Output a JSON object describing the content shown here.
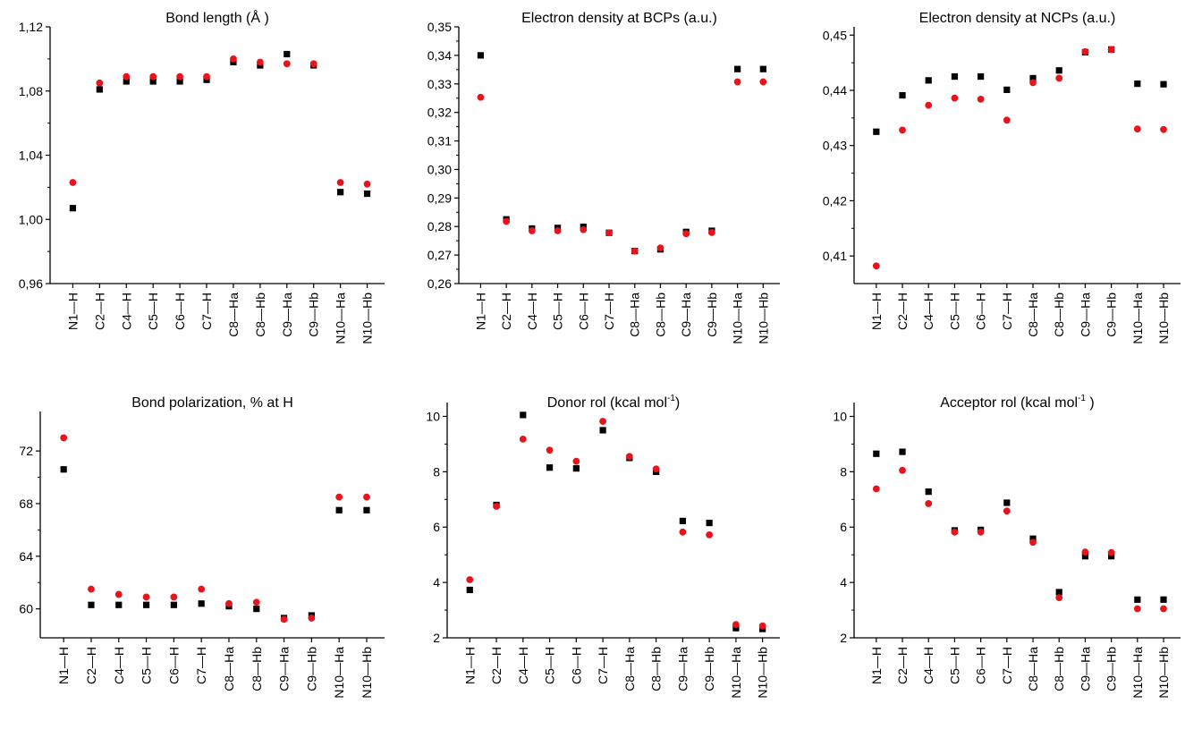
{
  "chart_data": [
    {
      "type": "scatter",
      "title": "Bond length (Å )",
      "categories": [
        "N1—H",
        "C2—H",
        "C4—H",
        "C5—H",
        "C6—H",
        "C7—H",
        "C8—Ha",
        "C8—Hb",
        "C9—Ha",
        "C9—Hb",
        "N10—Ha",
        "N10—Hb"
      ],
      "ylim": [
        0.96,
        1.12
      ],
      "yticks": [
        "0,96",
        "1,00",
        "1,04",
        "1,08",
        "1,12"
      ],
      "series": [
        {
          "marker": "square",
          "color": "#000000",
          "values": [
            1.007,
            1.081,
            1.086,
            1.086,
            1.086,
            1.087,
            1.098,
            1.096,
            1.103,
            1.096,
            1.017,
            1.016
          ]
        },
        {
          "marker": "circle",
          "color": "#e8141b",
          "values": [
            1.023,
            1.085,
            1.089,
            1.089,
            1.089,
            1.089,
            1.1,
            1.098,
            1.097,
            1.097,
            1.023,
            1.022
          ]
        }
      ]
    },
    {
      "type": "scatter",
      "title": "Electron density at BCPs (a.u.)",
      "categories": [
        "N1—H",
        "C2—H",
        "C4—H",
        "C5—H",
        "C6—H",
        "C7—H",
        "C8—Ha",
        "C8—Hb",
        "C9—Ha",
        "C9—Hb",
        "N10—Ha",
        "N10—Hb"
      ],
      "ylim": [
        0.26,
        0.35
      ],
      "yticks": [
        "0,26",
        "0,27",
        "0,28",
        "0,29",
        "0,30",
        "0,31",
        "0,32",
        "0,33",
        "0,34",
        "0,35"
      ],
      "series": [
        {
          "marker": "square",
          "color": "#000000",
          "values": [
            0.34,
            0.2825,
            0.2793,
            0.2795,
            0.2799,
            0.2778,
            0.2714,
            0.272,
            0.2781,
            0.2785,
            0.3352,
            0.3352
          ]
        },
        {
          "marker": "circle",
          "color": "#e8141b",
          "values": [
            0.3253,
            0.2818,
            0.2785,
            0.2785,
            0.2789,
            0.2778,
            0.2714,
            0.2725,
            0.2775,
            0.2779,
            0.3307,
            0.3307
          ]
        }
      ]
    },
    {
      "type": "scatter",
      "title": "Electron density at NCPs (a.u.)",
      "categories": [
        "N1—H",
        "C2—H",
        "C4—H",
        "C5—H",
        "C6—H",
        "C7—H",
        "C8—Ha",
        "C8—Hb",
        "C9—Ha",
        "C9—Hb",
        "N10—Ha",
        "N10—Hb"
      ],
      "ylim": [
        0.405,
        0.4515
      ],
      "yticks": [
        "0,41",
        "0,42",
        "0,43",
        "0,44",
        "0,45"
      ],
      "series": [
        {
          "marker": "square",
          "color": "#000000",
          "values": [
            0.4325,
            0.4391,
            0.4418,
            0.4425,
            0.4425,
            0.4401,
            0.4422,
            0.4436,
            0.4469,
            0.4474,
            0.4412,
            0.4411
          ]
        },
        {
          "marker": "circle",
          "color": "#e8141b",
          "values": [
            0.4082,
            0.4328,
            0.4373,
            0.4386,
            0.4384,
            0.4346,
            0.4414,
            0.4422,
            0.447,
            0.4474,
            0.433,
            0.4329
          ]
        }
      ]
    },
    {
      "type": "scatter",
      "title": "Bond polarization, % at H",
      "categories": [
        "N1—H",
        "C2—H",
        "C4—H",
        "C5—H",
        "C6—H",
        "C7—H",
        "C8—Ha",
        "C8—Hb",
        "C9—Ha",
        "C9—Hb",
        "N10—Ha",
        "N10—Hb"
      ],
      "ylim": [
        57.8,
        75
      ],
      "yticks": [
        "60",
        "64",
        "68",
        "72"
      ],
      "series": [
        {
          "marker": "square",
          "color": "#000000",
          "values": [
            70.6,
            60.3,
            60.3,
            60.3,
            60.3,
            60.4,
            60.2,
            60.0,
            59.3,
            59.5,
            67.5,
            67.5
          ]
        },
        {
          "marker": "circle",
          "color": "#e8141b",
          "values": [
            73.0,
            61.5,
            61.1,
            60.9,
            60.9,
            61.5,
            60.4,
            60.5,
            59.2,
            59.3,
            68.5,
            68.5
          ]
        }
      ]
    },
    {
      "type": "scatter",
      "title": "Donor rol  (kcal mol-1)",
      "categories": [
        "N1—H",
        "C2—H",
        "C4—H",
        "C5—H",
        "C6—H",
        "C7—H",
        "C8—Ha",
        "C8—Hb",
        "C9—Ha",
        "C9—Hb",
        "N10—Ha",
        "N10—Hb"
      ],
      "ylim": [
        2,
        10.5
      ],
      "yticks": [
        "2",
        "4",
        "6",
        "8",
        "10"
      ],
      "series": [
        {
          "marker": "square",
          "color": "#000000",
          "values": [
            3.73,
            6.8,
            10.05,
            8.15,
            8.12,
            9.5,
            8.5,
            8.0,
            6.22,
            6.15,
            2.35,
            2.32
          ]
        },
        {
          "marker": "circle",
          "color": "#e8141b",
          "values": [
            4.1,
            6.75,
            9.18,
            8.78,
            8.38,
            9.82,
            8.55,
            8.1,
            5.82,
            5.72,
            2.48,
            2.43
          ]
        }
      ]
    },
    {
      "type": "scatter",
      "title": "Acceptor rol  (kcal mol-1 )",
      "categories": [
        "N1—H",
        "C2—H",
        "C4—H",
        "C5—H",
        "C6—H",
        "C7—H",
        "C8—Ha",
        "C8—Hb",
        "C9—Ha",
        "C9—Hb",
        "N10—Ha",
        "N10—Hb"
      ],
      "ylim": [
        2,
        10.5
      ],
      "yticks": [
        "2",
        "4",
        "6",
        "8",
        "10"
      ],
      "series": [
        {
          "marker": "square",
          "color": "#000000",
          "values": [
            8.65,
            8.72,
            7.28,
            5.88,
            5.9,
            6.88,
            5.58,
            3.65,
            4.95,
            4.95,
            3.38,
            3.38
          ]
        },
        {
          "marker": "circle",
          "color": "#e8141b",
          "values": [
            7.38,
            8.05,
            6.85,
            5.82,
            5.82,
            6.58,
            5.45,
            3.45,
            5.1,
            5.08,
            3.05,
            3.05
          ]
        }
      ]
    }
  ]
}
